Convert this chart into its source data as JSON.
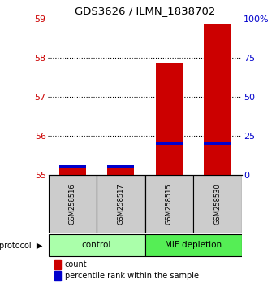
{
  "title": "GDS3626 / ILMN_1838702",
  "samples": [
    "GSM258516",
    "GSM258517",
    "GSM258515",
    "GSM258530"
  ],
  "groups": [
    {
      "name": "control",
      "color": "#aaffaa"
    },
    {
      "name": "MIF depletion",
      "color": "#55ee55"
    }
  ],
  "count_values": [
    55.22,
    55.22,
    57.85,
    58.88
  ],
  "count_base": 55.0,
  "percentile_values": [
    5.5,
    5.5,
    20.0,
    20.0
  ],
  "ylim_left": [
    55,
    59
  ],
  "ylim_right": [
    0,
    100
  ],
  "yticks_left": [
    55,
    56,
    57,
    58,
    59
  ],
  "yticks_right": [
    0,
    25,
    50,
    75,
    100
  ],
  "ytick_labels_right": [
    "0",
    "25",
    "50",
    "75",
    "100%"
  ],
  "bar_color_red": "#cc0000",
  "bar_color_blue": "#0000cc",
  "bg_color": "#ffffff",
  "left_tick_color": "#cc0000",
  "right_tick_color": "#0000cc",
  "sample_box_color": "#cccccc",
  "legend_items": [
    "count",
    "percentile rank within the sample"
  ]
}
